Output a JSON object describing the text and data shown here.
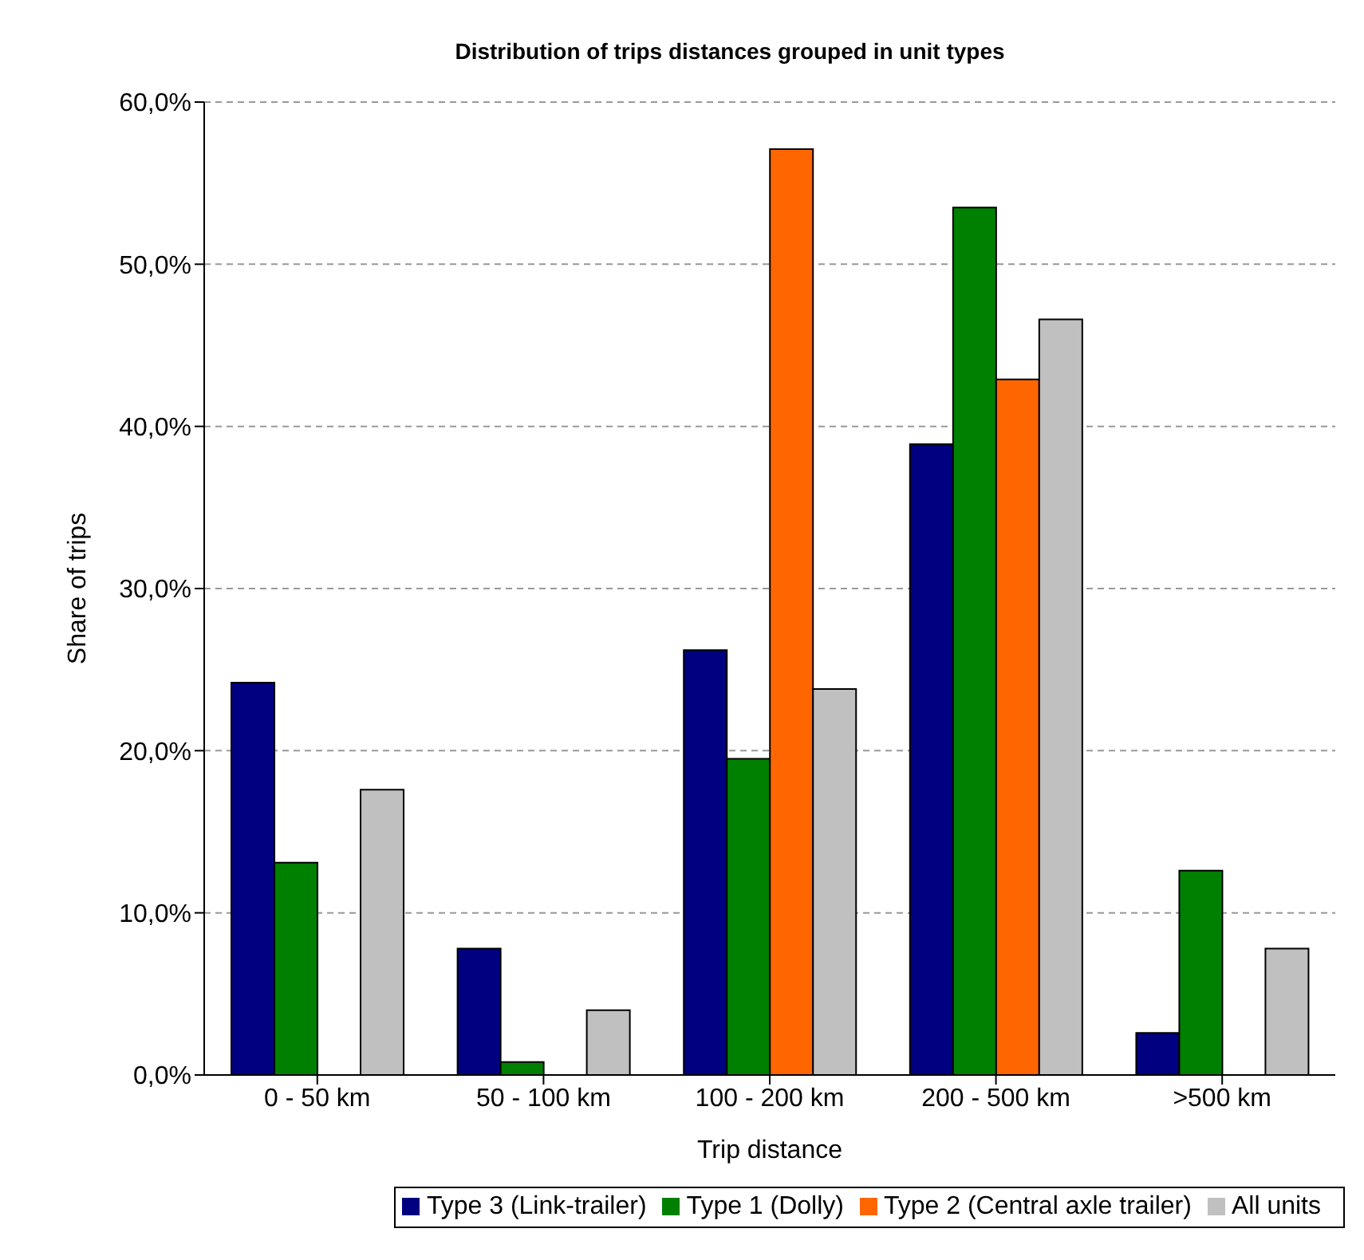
{
  "chart_data": {
    "type": "bar",
    "title": "Distribution of trips distances grouped in unit types",
    "xlabel": "Trip distance",
    "ylabel": "Share of trips",
    "categories": [
      "0 - 50 km",
      "50 - 100 km",
      "100 - 200 km",
      "200 - 500 km",
      ">500 km"
    ],
    "series": [
      {
        "name": "Type 3 (Link-trailer)",
        "color": "#000080",
        "values": [
          24.2,
          7.8,
          26.2,
          38.9,
          2.6
        ]
      },
      {
        "name": "Type 1 (Dolly)",
        "color": "#008000",
        "values": [
          13.1,
          0.8,
          19.5,
          53.5,
          12.6
        ]
      },
      {
        "name": "Type 2 (Central axle trailer)",
        "color": "#ff6600",
        "values": [
          0,
          0,
          57.1,
          42.9,
          0
        ]
      },
      {
        "name": "All units",
        "color": "#c0c0c0",
        "values": [
          17.6,
          4.0,
          23.8,
          46.6,
          7.8
        ]
      }
    ],
    "ylim": [
      0,
      60
    ],
    "yticks": [
      {
        "value": 0,
        "label": "0,0%"
      },
      {
        "value": 10,
        "label": "10,0%"
      },
      {
        "value": 20,
        "label": "20,0%"
      },
      {
        "value": 30,
        "label": "30,0%"
      },
      {
        "value": 40,
        "label": "40,0%"
      },
      {
        "value": 50,
        "label": "50,0%"
      },
      {
        "value": 60,
        "label": "60,0%"
      }
    ],
    "grid": "y",
    "legend": "bottom"
  }
}
